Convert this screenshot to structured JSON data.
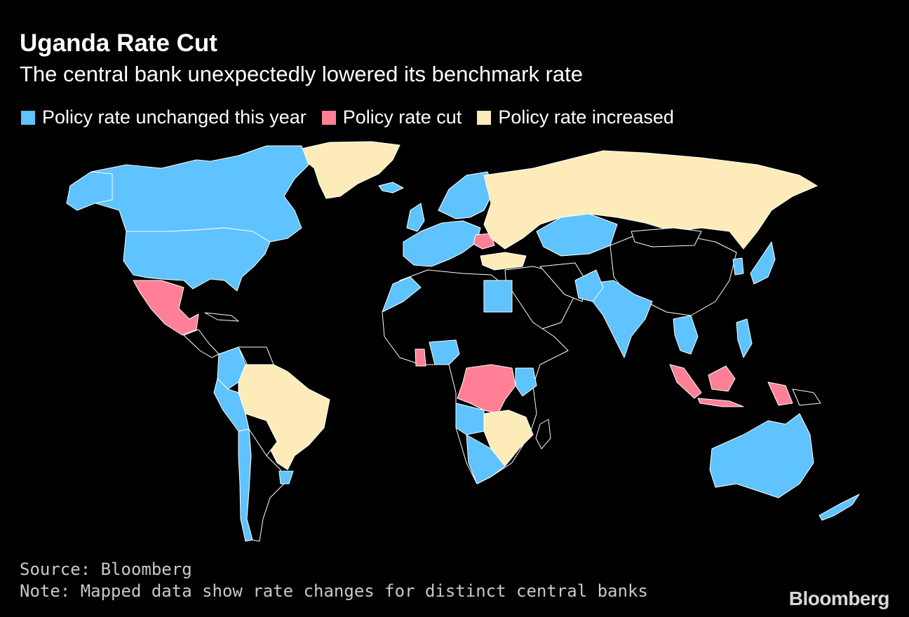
{
  "header": {
    "title": "Uganda Rate Cut",
    "subtitle": "The central bank unexpectedly lowered its benchmark rate"
  },
  "legend": {
    "items": [
      {
        "label": "Policy rate unchanged this year",
        "color": "#5ec3ff"
      },
      {
        "label": "Policy rate cut",
        "color": "#ff8096"
      },
      {
        "label": "Policy rate increased",
        "color": "#fdecb9"
      }
    ]
  },
  "footer": {
    "source": "Source: Bloomberg",
    "note": "Note: Mapped data show rate changes for distinct central banks",
    "brand": "Bloomberg"
  },
  "colors": {
    "unchanged": "#5ec3ff",
    "cut": "#ff8096",
    "increased": "#fdecb9",
    "no_data": "#000000",
    "border": "#ffffff"
  }
}
